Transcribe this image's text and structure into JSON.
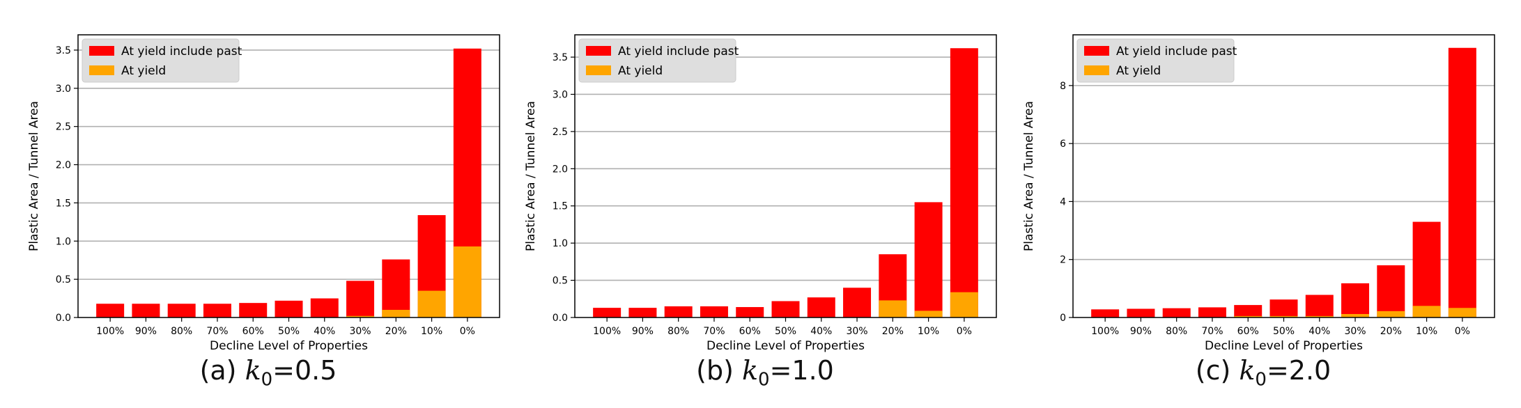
{
  "chart_data": [
    {
      "type": "bar",
      "stacking": "overlay",
      "xlabel": "Decline Level of Properties",
      "ylabel": "Plastic Area / Tunnel Area",
      "ylim": [
        0,
        3.7
      ],
      "yticks": [
        "0.0",
        "0.5",
        "1.0",
        "1.5",
        "2.0",
        "2.5",
        "3.0",
        "3.5"
      ],
      "grid": "horizontal",
      "legend_position": "top-left",
      "categories": [
        "100%",
        "90%",
        "80%",
        "70%",
        "60%",
        "50%",
        "40%",
        "30%",
        "20%",
        "10%",
        "0%"
      ],
      "series": [
        {
          "name": "At yield include past",
          "color": "#ff0000",
          "values": [
            0.18,
            0.18,
            0.18,
            0.18,
            0.19,
            0.22,
            0.25,
            0.48,
            0.76,
            1.34,
            3.52
          ]
        },
        {
          "name": "At yield",
          "color": "#ffa500",
          "values": [
            0.0,
            0.0,
            0.0,
            0.0,
            0.0,
            0.0,
            0.0,
            0.02,
            0.1,
            0.35,
            0.93
          ]
        }
      ],
      "caption": {
        "label": "(a) ",
        "var": "k",
        "sub": "0",
        "value": "=0.5"
      }
    },
    {
      "type": "bar",
      "stacking": "overlay",
      "xlabel": "Decline Level of Properties",
      "ylabel": "Plastic Area / Tunnel Area",
      "ylim": [
        0,
        3.8
      ],
      "yticks": [
        "0.0",
        "0.5",
        "1.0",
        "1.5",
        "2.0",
        "2.5",
        "3.0",
        "3.5"
      ],
      "grid": "horizontal",
      "legend_position": "top-left",
      "categories": [
        "100%",
        "90%",
        "80%",
        "70%",
        "60%",
        "50%",
        "40%",
        "30%",
        "20%",
        "10%",
        "0%"
      ],
      "series": [
        {
          "name": "At yield include past",
          "color": "#ff0000",
          "values": [
            0.13,
            0.13,
            0.15,
            0.15,
            0.14,
            0.22,
            0.27,
            0.4,
            0.85,
            1.55,
            3.62
          ]
        },
        {
          "name": "At yield",
          "color": "#ffa500",
          "values": [
            0.0,
            0.0,
            0.0,
            0.0,
            0.0,
            0.0,
            0.0,
            0.0,
            0.23,
            0.09,
            0.34
          ]
        }
      ],
      "caption": {
        "label": "(b) ",
        "var": "k",
        "sub": "0",
        "value": "=1.0"
      }
    },
    {
      "type": "bar",
      "stacking": "overlay",
      "xlabel": "Decline Level of Properties",
      "ylabel": "Plastic Area / Tunnel Area",
      "ylim": [
        0,
        9.75
      ],
      "yticks": [
        "0",
        "2",
        "4",
        "6",
        "8"
      ],
      "grid": "horizontal",
      "legend_position": "top-left",
      "categories": [
        "100%",
        "90%",
        "80%",
        "70%",
        "60%",
        "50%",
        "40%",
        "30%",
        "20%",
        "10%",
        "0%"
      ],
      "series": [
        {
          "name": "At yield include past",
          "color": "#ff0000",
          "values": [
            0.28,
            0.3,
            0.32,
            0.35,
            0.43,
            0.62,
            0.78,
            1.18,
            1.8,
            3.3,
            9.3
          ]
        },
        {
          "name": "At yield",
          "color": "#ffa500",
          "values": [
            0.0,
            0.0,
            0.0,
            0.0,
            0.05,
            0.05,
            0.05,
            0.12,
            0.22,
            0.4,
            0.33
          ]
        }
      ],
      "caption": {
        "label": "(c) ",
        "var": "k",
        "sub": "0",
        "value": "=2.0"
      }
    }
  ]
}
